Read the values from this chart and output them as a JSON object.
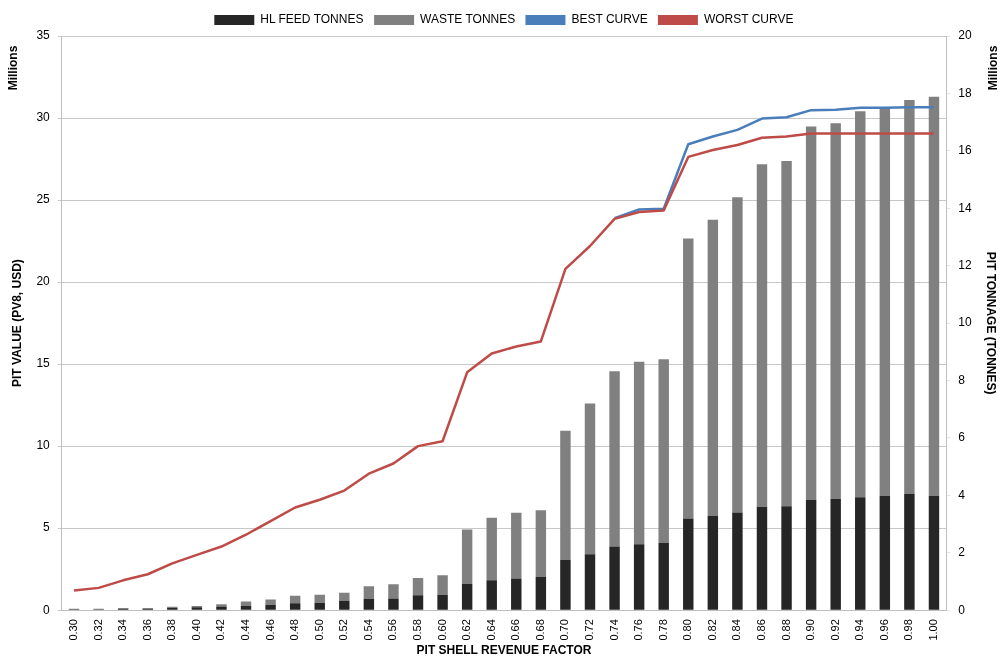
{
  "chart_data": {
    "type": "bar",
    "xlabel": "PIT SHELL REVENUE FACTOR",
    "ylabel": "PIT VALUE (PV8, USD)",
    "y2label": "PIT TONNAGE (TONNES)",
    "categories": [
      "0.30",
      "0.32",
      "0.34",
      "0.36",
      "0.38",
      "0.40",
      "0.42",
      "0.44",
      "0.46",
      "0.48",
      "0.50",
      "0.52",
      "0.54",
      "0.56",
      "0.58",
      "0.60",
      "0.62",
      "0.64",
      "0.66",
      "0.68",
      "0.70",
      "0.72",
      "0.74",
      "0.76",
      "0.78",
      "0.80",
      "0.82",
      "0.84",
      "0.86",
      "0.88",
      "0.90",
      "0.92",
      "0.94",
      "0.96",
      "0.98",
      "1.00"
    ],
    "stacked": true,
    "grid": "y",
    "legend": "top",
    "marker": "none",
    "line_style": "solid",
    "ylim": [
      0,
      35
    ],
    "yticks": [
      0,
      5,
      10,
      15,
      20,
      25,
      30,
      35
    ],
    "y2lim": [
      0,
      20
    ],
    "y2ticks": [
      0,
      2,
      4,
      6,
      8,
      10,
      12,
      14,
      16,
      18,
      20
    ],
    "annotations": [
      "Millions",
      "Millions"
    ],
    "series": [
      {
        "name": "HL FEED TONNES",
        "axis": "y2",
        "color": "#262626",
        "values": [
          0.03,
          0.03,
          0.05,
          0.05,
          0.08,
          0.1,
          0.13,
          0.15,
          0.19,
          0.24,
          0.26,
          0.32,
          0.39,
          0.41,
          0.52,
          0.54,
          0.92,
          1.04,
          1.1,
          1.16,
          1.75,
          1.95,
          2.22,
          2.3,
          2.34,
          3.19,
          3.28,
          3.4,
          3.6,
          3.62,
          3.85,
          3.87,
          3.93,
          3.99,
          4.05,
          3.99
        ]
      },
      {
        "name": "WASTE TONNES",
        "axis": "y2",
        "color": "#808080",
        "values": [
          0.02,
          0.02,
          0.03,
          0.03,
          0.04,
          0.05,
          0.08,
          0.15,
          0.18,
          0.26,
          0.28,
          0.29,
          0.44,
          0.49,
          0.6,
          0.68,
          1.89,
          2.18,
          2.29,
          2.32,
          4.5,
          5.25,
          6.1,
          6.35,
          6.4,
          9.76,
          10.32,
          10.98,
          11.93,
          12.03,
          13.0,
          13.09,
          13.45,
          13.51,
          13.72,
          13.89
        ]
      },
      {
        "name": "BEST CURVE",
        "type": "line",
        "axis": "y",
        "color": "#4a7ebb",
        "values": [
          null,
          null,
          null,
          null,
          null,
          null,
          null,
          null,
          null,
          null,
          null,
          null,
          null,
          null,
          null,
          null,
          null,
          null,
          null,
          null,
          null,
          null,
          23.9,
          24.43,
          24.47,
          28.4,
          28.87,
          29.28,
          29.97,
          30.05,
          30.48,
          30.5,
          30.63,
          30.63,
          30.65,
          30.65
        ]
      },
      {
        "name": "WORST CURVE",
        "type": "line",
        "axis": "y",
        "color": "#be4b48",
        "values": [
          1.2,
          1.36,
          1.82,
          2.19,
          2.85,
          3.37,
          3.88,
          4.6,
          5.43,
          6.26,
          6.73,
          7.29,
          8.32,
          8.94,
          10.0,
          10.3,
          14.5,
          15.65,
          16.07,
          16.38,
          20.8,
          22.2,
          23.85,
          24.27,
          24.37,
          27.63,
          28.05,
          28.36,
          28.8,
          28.87,
          29.06,
          29.06,
          29.06,
          29.06,
          29.06,
          29.06
        ]
      }
    ]
  }
}
